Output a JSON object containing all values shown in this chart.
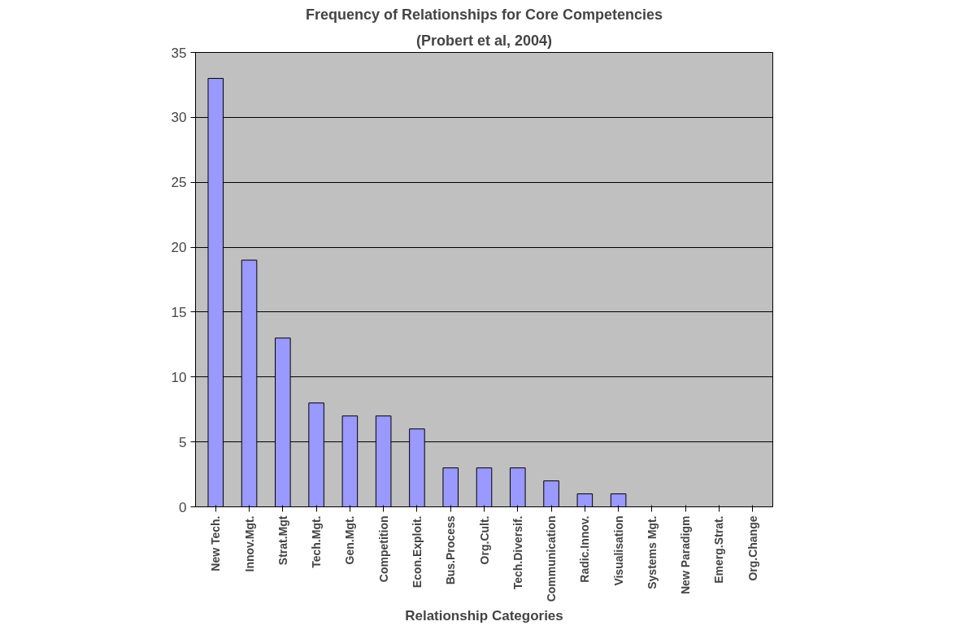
{
  "chart_data": {
    "type": "bar",
    "title": "Frequency of Relationships for Core Competencies",
    "subtitle": "(Probert et al, 2004)",
    "xlabel": "Relationship Categories",
    "categories": [
      "New Tech.",
      "Innov.Mgt.",
      "Strat.Mgt",
      "Tech.Mgt.",
      "Gen.Mgt.",
      "Competition",
      "Econ.Exploit.",
      "Bus.Process",
      "Org.Cult.",
      "Tech.Diversif.",
      "Communication",
      "Radic.Innov.",
      "Visualisation",
      "Systems Mgt.",
      "New Paradigm",
      "Emerg.Strat.",
      "Org.Change"
    ],
    "values": [
      33,
      19,
      13,
      8,
      7,
      7,
      6,
      3,
      3,
      3,
      2,
      1,
      1,
      0,
      0,
      0,
      0
    ],
    "color": "#9999ff",
    "ylim": [
      0,
      35
    ],
    "yticks": [
      0,
      5,
      10,
      15,
      20,
      25,
      30,
      35
    ],
    "grid": "y"
  }
}
